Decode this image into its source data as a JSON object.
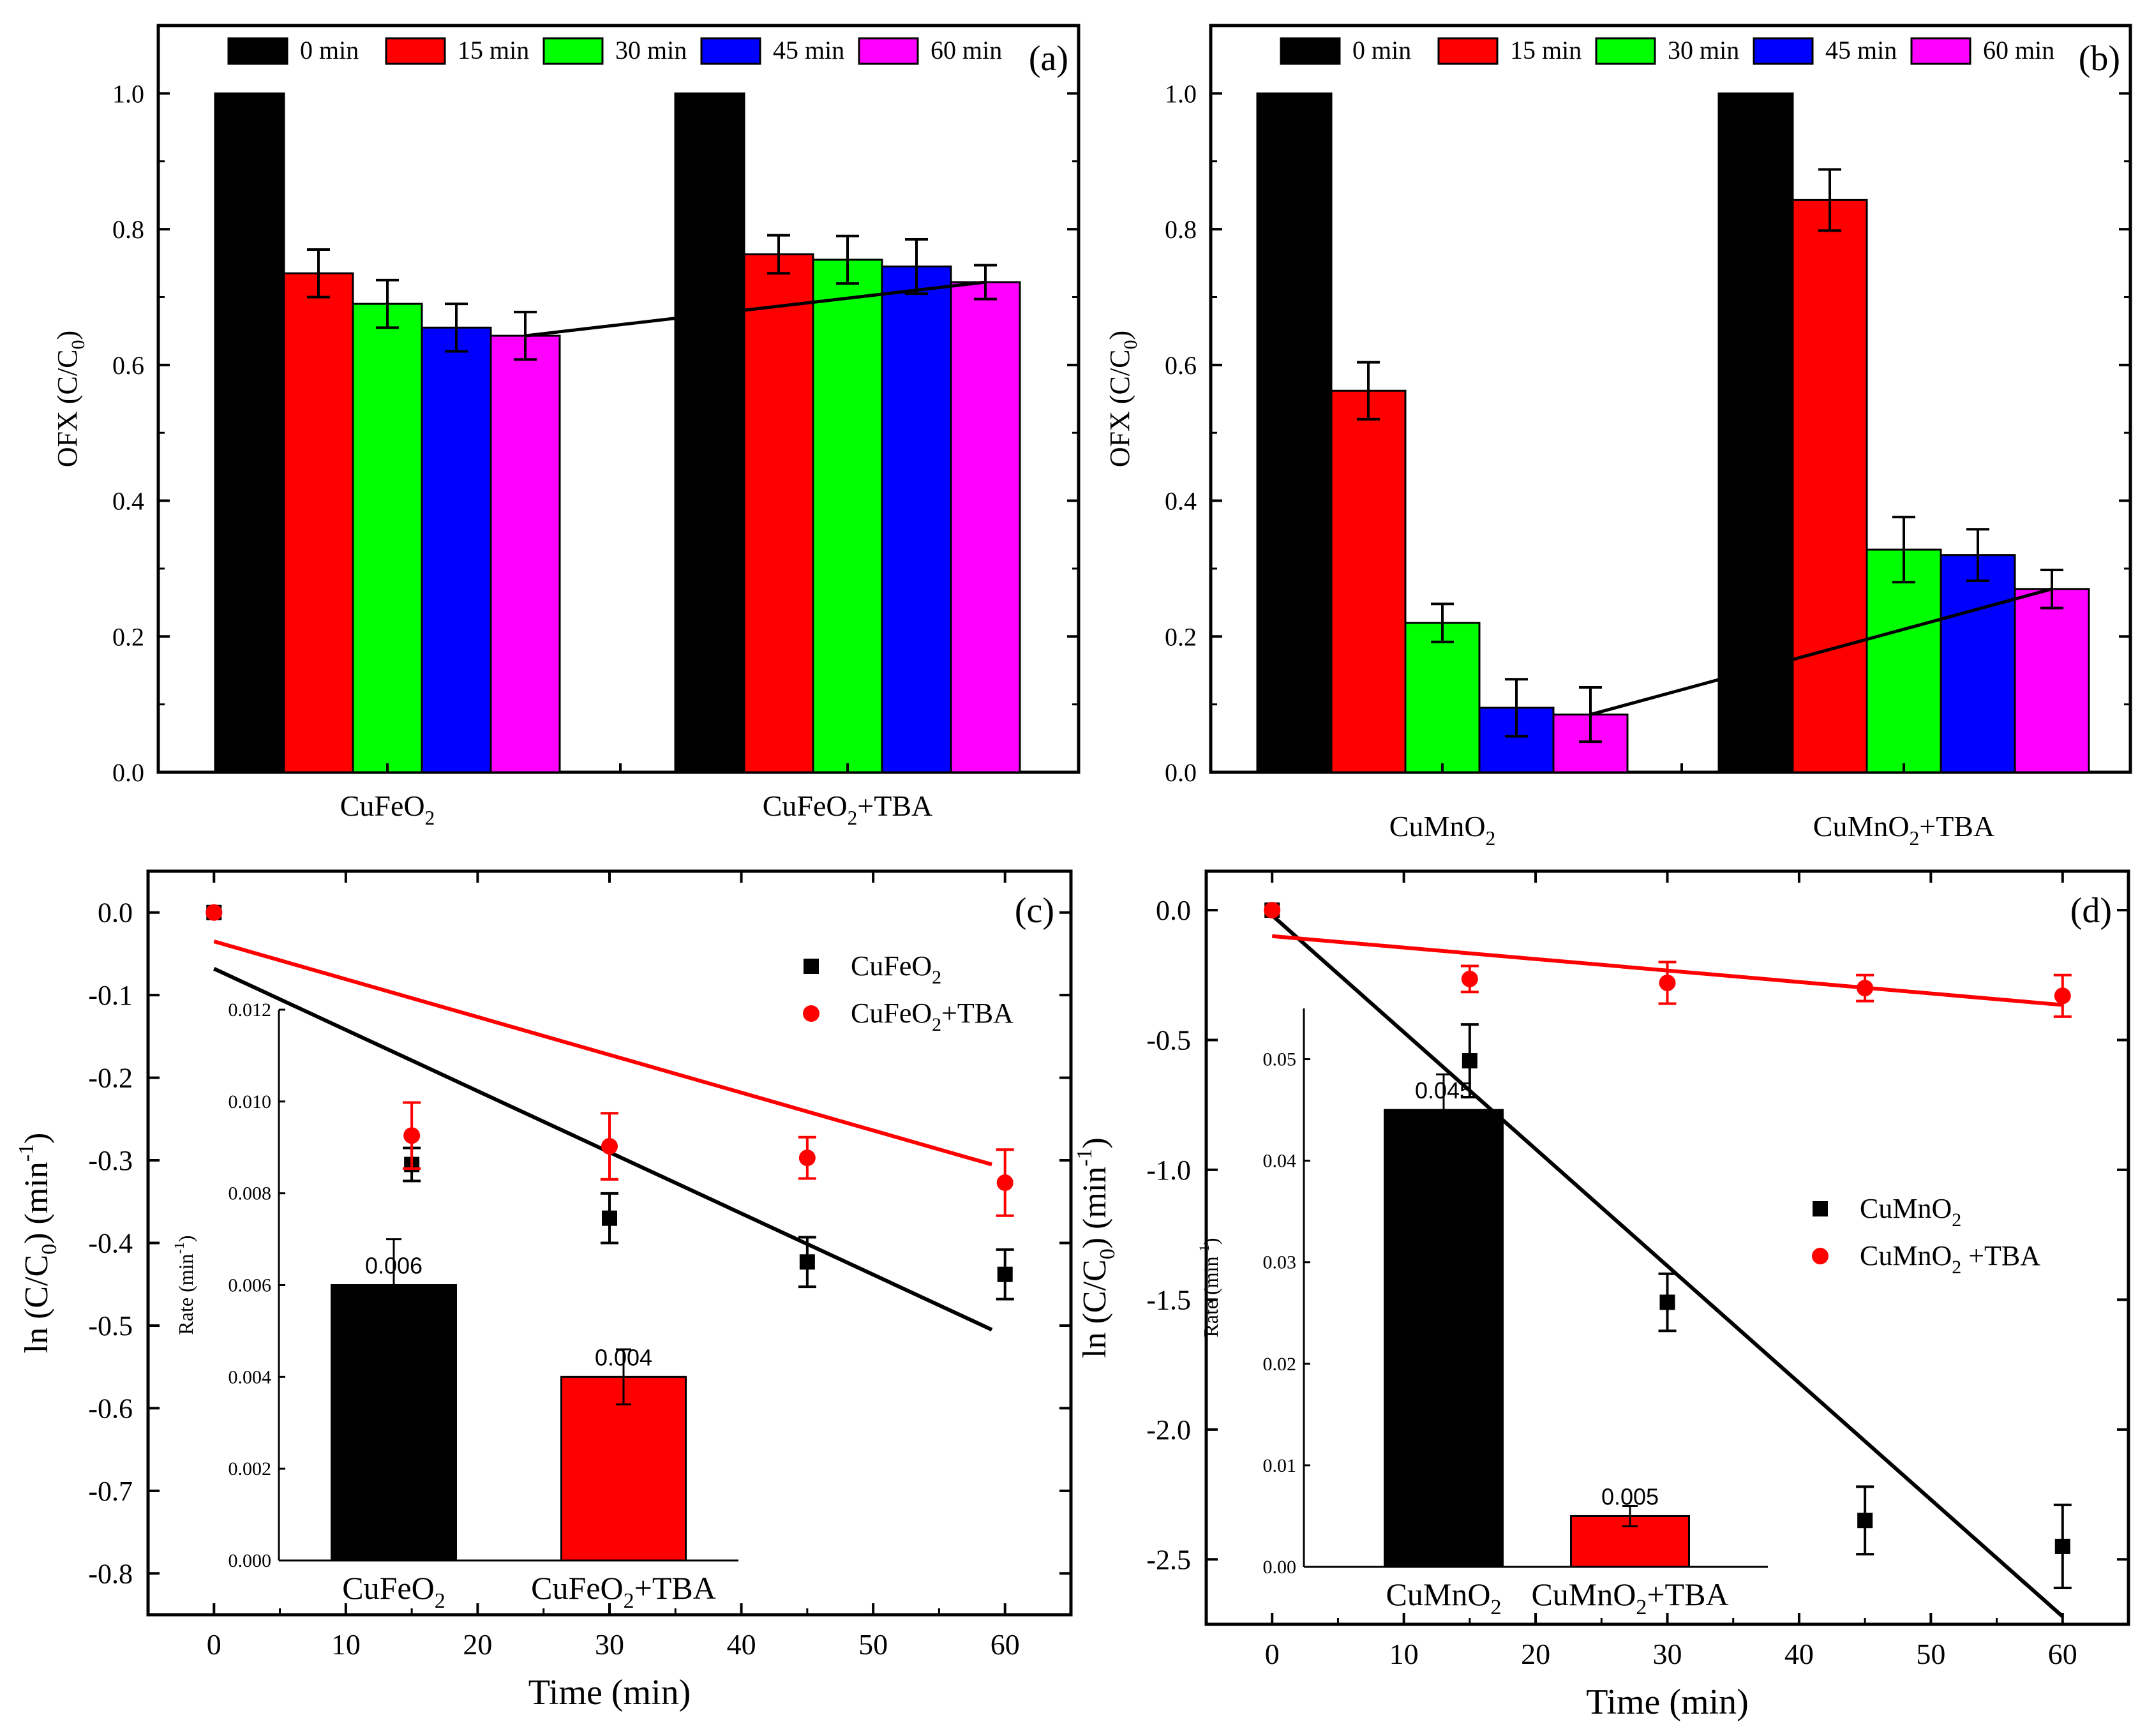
{
  "colors": {
    "black": "#000000",
    "red": "#ff0000",
    "green": "#00ff00",
    "blue": "#0000ff",
    "magenta": "#ff00ff"
  },
  "chart_data": [
    {
      "panel": "a",
      "type": "bar",
      "label": "(a)",
      "ylabel": "OFX (C/C0)",
      "ylim": [
        0,
        1.1
      ],
      "yticks": [
        "0.0",
        "0.2",
        "0.4",
        "0.6",
        "0.8",
        "1.0"
      ],
      "legend_position": "top",
      "series_names": [
        "0 min",
        "15 min",
        "30 min",
        "45 min",
        "60 min"
      ],
      "groups": [
        {
          "category": "CuFeO2",
          "label_main": "CuFeO",
          "label_sub": "2",
          "label_tail": "",
          "values": [
            1.0,
            0.735,
            0.69,
            0.655,
            0.643
          ],
          "errors": [
            0,
            0.035,
            0.035,
            0.035,
            0.035
          ]
        },
        {
          "category": "CuFeO2+TBA",
          "label_main": "CuFeO",
          "label_sub": "2",
          "label_tail": "+TBA",
          "values": [
            1.0,
            0.763,
            0.755,
            0.745,
            0.722
          ],
          "errors": [
            0,
            0.028,
            0.035,
            0.04,
            0.025
          ]
        }
      ],
      "trend_line": {
        "from": [
          0,
          4
        ],
        "to": [
          1,
          4
        ]
      }
    },
    {
      "panel": "b",
      "type": "bar",
      "label": "(b)",
      "ylabel": "OFX (C/C0)",
      "ylim": [
        0,
        1.1
      ],
      "yticks": [
        "0.0",
        "0.2",
        "0.4",
        "0.6",
        "0.8",
        "1.0"
      ],
      "legend_position": "top",
      "series_names": [
        "0 min",
        "15 min",
        "30 min",
        "45 min",
        "60 min"
      ],
      "groups": [
        {
          "category": "CuMnO2",
          "label_main": "CuMnO",
          "label_sub": "2",
          "label_tail": "",
          "values": [
            1.0,
            0.562,
            0.22,
            0.095,
            0.085
          ],
          "errors": [
            0,
            0.042,
            0.028,
            0.042,
            0.04
          ]
        },
        {
          "category": "CuMnO2+TBA",
          "label_main": "CuMnO",
          "label_sub": "2",
          "label_tail": "+TBA",
          "values": [
            1.0,
            0.843,
            0.328,
            0.32,
            0.27
          ],
          "errors": [
            0,
            0.045,
            0.048,
            0.038,
            0.028
          ]
        }
      ],
      "trend_line": {
        "from": [
          0,
          4
        ],
        "to": [
          1,
          4
        ]
      }
    },
    {
      "panel": "c",
      "type": "scatter",
      "label": "(c)",
      "xlabel": "Time (min)",
      "ylabel": "ln (C/C0) (min-1)",
      "xlim": [
        -5,
        65
      ],
      "ylim": [
        -0.85,
        0.05
      ],
      "xticks": [
        0,
        10,
        20,
        30,
        40,
        50,
        60
      ],
      "yticks": [
        "0.0",
        "-0.1",
        "-0.2",
        "-0.3",
        "-0.4",
        "-0.5",
        "-0.6",
        "-0.7",
        "-0.8"
      ],
      "legend_position": "upper-right",
      "series": [
        {
          "name": "CuFeO2",
          "legend_main": "CuFeO",
          "legend_sub": "2",
          "legend_tail": "",
          "marker": "square",
          "color": "#000000",
          "x": [
            0,
            15,
            30,
            45,
            60
          ],
          "y": [
            0.0,
            -0.305,
            -0.37,
            -0.423,
            -0.438
          ],
          "err": [
            0,
            0.02,
            0.03,
            0.03,
            0.03
          ],
          "fit": {
            "x": [
              0,
              59
            ],
            "y": [
              -0.068,
              -0.505
            ]
          }
        },
        {
          "name": "CuFeO2+TBA",
          "legend_main": "CuFeO",
          "legend_sub": "2",
          "legend_tail": "+TBA",
          "marker": "circle",
          "color": "#ff0000",
          "x": [
            0,
            15,
            30,
            45,
            60
          ],
          "y": [
            0.0,
            -0.27,
            -0.283,
            -0.297,
            -0.327
          ],
          "err": [
            0,
            0.04,
            0.04,
            0.025,
            0.04
          ],
          "fit": {
            "x": [
              0,
              59
            ],
            "y": [
              -0.035,
              -0.305
            ]
          }
        }
      ],
      "inset": {
        "type": "bar",
        "ylabel": "Rate (min-1)",
        "ylim": [
          0,
          0.012
        ],
        "yticks": [
          "0.000",
          "0.002",
          "0.004",
          "0.006",
          "0.008",
          "0.010",
          "0.012"
        ],
        "bars": [
          {
            "category": "CuFeO2",
            "label_main": "CuFeO",
            "label_sub": "2",
            "label_tail": "",
            "value": 0.006,
            "label": "0.006",
            "error": 0.001,
            "color": "#000000"
          },
          {
            "category": "CuFeO2+TBA",
            "label_main": "CuFeO",
            "label_sub": "2",
            "label_tail": "+TBA",
            "value": 0.004,
            "label": "0.004",
            "error": 0.0006,
            "color": "#ff0000"
          }
        ]
      }
    },
    {
      "panel": "d",
      "type": "scatter",
      "label": "(d)",
      "xlabel": "Time (min)",
      "ylabel": "ln (C/C0) (min-1)",
      "xlim": [
        -5,
        65
      ],
      "ylim": [
        -2.75,
        0.15
      ],
      "xticks": [
        0,
        10,
        20,
        30,
        40,
        50,
        60
      ],
      "yticks": [
        "0.0",
        "-0.5",
        "-1.0",
        "-1.5",
        "-2.0",
        "-2.5"
      ],
      "legend_position": "right",
      "series": [
        {
          "name": "CuMnO2",
          "legend_main": "CuMnO",
          "legend_sub": "2",
          "legend_tail": "",
          "marker": "square",
          "color": "#000000",
          "x": [
            0,
            15,
            30,
            45,
            60
          ],
          "y": [
            0.0,
            -0.58,
            -1.51,
            -2.35,
            -2.45
          ],
          "err": [
            0,
            0.14,
            0.11,
            0.13,
            0.16
          ],
          "fit": {
            "x": [
              0,
              60
            ],
            "y": [
              -0.02,
              -2.72
            ]
          }
        },
        {
          "name": "CuMnO2+TBA",
          "legend_main": "CuMnO",
          "legend_sub": "2",
          "legend_tail": " +TBA",
          "marker": "circle",
          "color": "#ff0000",
          "x": [
            0,
            15,
            30,
            45,
            60
          ],
          "y": [
            0.0,
            -0.265,
            -0.28,
            -0.3,
            -0.33
          ],
          "err": [
            0,
            0.05,
            0.08,
            0.05,
            0.08
          ],
          "fit": {
            "x": [
              0,
              60
            ],
            "y": [
              -0.1,
              -0.365
            ]
          }
        }
      ],
      "inset": {
        "type": "bar",
        "ylabel": "Rate (min-1)",
        "ylim": [
          0,
          0.055
        ],
        "yticks": [
          "0.00",
          "0.01",
          "0.02",
          "0.03",
          "0.04",
          "0.05"
        ],
        "bars": [
          {
            "category": "CuMnO2",
            "label_main": "CuMnO",
            "label_sub": "2",
            "label_tail": "",
            "value": 0.045,
            "label": "0.045",
            "error": 0.0035,
            "color": "#000000"
          },
          {
            "category": "CuMnO2+TBA",
            "label_main": "CuMnO",
            "label_sub": "2",
            "label_tail": "+TBA",
            "value": 0.005,
            "label": "0.005",
            "error": 0.001,
            "color": "#ff0000"
          }
        ]
      }
    }
  ]
}
